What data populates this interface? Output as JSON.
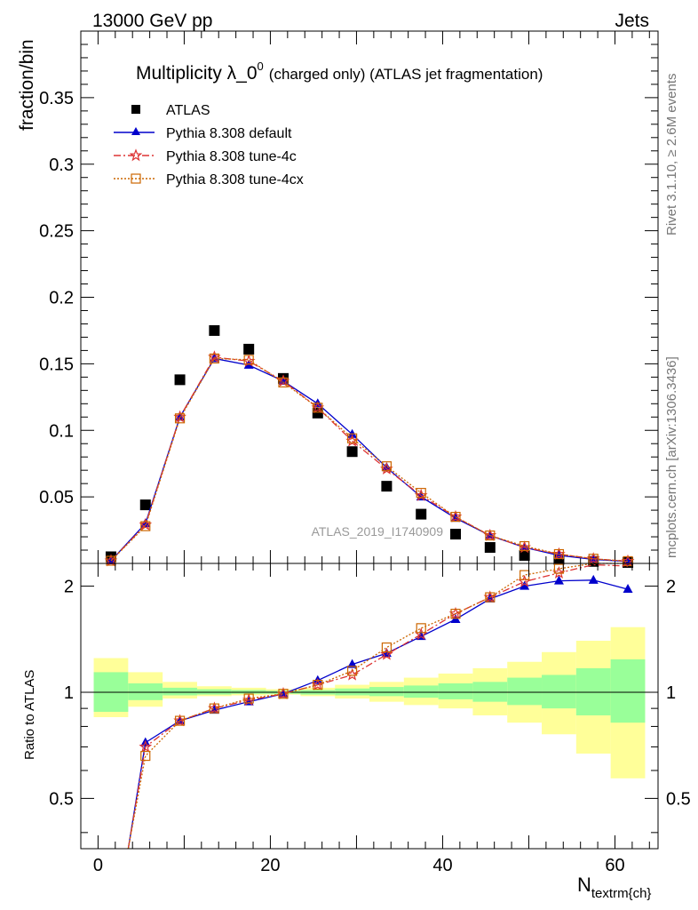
{
  "header": {
    "left": "13000 GeV pp",
    "right": "Jets"
  },
  "side": {
    "rivet": "Rivet 3.1.10, ≥ 2.6M events",
    "mcplots": "mcplots.cern.ch [arXiv:1306.3436]"
  },
  "watermark": "ATLAS_2019_I1740909",
  "title": {
    "main": "Multiplicity λ_0",
    "sup": "0",
    "paren": "(charged only) (ATLAS jet fragmentation)"
  },
  "xlabel": {
    "base": "N",
    "sub": "textrm{ch}"
  },
  "chart_data": [
    {
      "type": "scatter",
      "panel": "main",
      "ylabel": "fraction/bin",
      "xlim": [
        -2,
        65
      ],
      "ylim": [
        0,
        0.4
      ],
      "yticks": [
        0.05,
        0.1,
        0.15,
        0.2,
        0.25,
        0.3,
        0.35
      ],
      "yticklabels": [
        "0.05",
        "0.1",
        "0.15",
        "0.2",
        "0.25",
        "0.3",
        "0.35"
      ],
      "x": [
        1.5,
        5.5,
        9.5,
        13.5,
        17.5,
        21.5,
        25.5,
        29.5,
        33.5,
        37.5,
        41.5,
        45.5,
        49.5,
        53.5,
        57.5,
        61.5
      ],
      "series": [
        {
          "name": "ATLAS",
          "style": "data",
          "color": "#000000",
          "values": [
            0.005,
            0.044,
            0.138,
            0.175,
            0.161,
            0.139,
            0.113,
            0.084,
            0.058,
            0.037,
            0.022,
            0.012,
            0.006,
            0.003,
            0.0015,
            0.0007
          ]
        },
        {
          "name": "Pythia 8.308 default",
          "style": "default",
          "color": "#0000cc",
          "values": [
            0.002,
            0.03,
            0.11,
            0.154,
            0.149,
            0.137,
            0.12,
            0.097,
            0.072,
            0.05,
            0.034,
            0.021,
            0.012,
            0.006,
            0.003,
            0.0015
          ]
        },
        {
          "name": "Pythia 8.308 tune-4c",
          "style": "tune4c",
          "color": "#dd3333",
          "values": [
            0.002,
            0.029,
            0.11,
            0.155,
            0.152,
            0.137,
            0.117,
            0.092,
            0.071,
            0.051,
            0.035,
            0.021,
            0.012,
            0.007,
            0.0035,
            0.0017
          ]
        },
        {
          "name": "Pythia 8.308 tune-4cx",
          "style": "tune4cx",
          "color": "#cc6600",
          "values": [
            0.002,
            0.028,
            0.109,
            0.154,
            0.153,
            0.136,
            0.117,
            0.094,
            0.073,
            0.053,
            0.035,
            0.021,
            0.013,
            0.007,
            0.0035,
            0.0017
          ]
        }
      ]
    },
    {
      "type": "line",
      "panel": "ratio",
      "ylabel": "Ratio to ATLAS",
      "xlim": [
        -2,
        65
      ],
      "ylim": [
        0.36,
        2.32
      ],
      "yticks": [
        0.5,
        1,
        2
      ],
      "yticklabels": [
        "0.5",
        "1",
        "2"
      ],
      "xticks": [
        0,
        20,
        40,
        60
      ],
      "xticklabels": [
        "0",
        "20",
        "40",
        "60"
      ],
      "bins": [
        [
          -0.5,
          3.5
        ],
        [
          3.5,
          7.5
        ],
        [
          7.5,
          11.5
        ],
        [
          11.5,
          15.5
        ],
        [
          15.5,
          19.5
        ],
        [
          19.5,
          23.5
        ],
        [
          23.5,
          27.5
        ],
        [
          27.5,
          31.5
        ],
        [
          31.5,
          35.5
        ],
        [
          35.5,
          39.5
        ],
        [
          39.5,
          43.5
        ],
        [
          43.5,
          47.5
        ],
        [
          47.5,
          51.5
        ],
        [
          51.5,
          55.5
        ],
        [
          55.5,
          59.5
        ],
        [
          59.5,
          63.5
        ]
      ],
      "band_inner": [
        [
          0.88,
          1.14
        ],
        [
          0.95,
          1.06
        ],
        [
          0.98,
          1.03
        ],
        [
          0.985,
          1.02
        ],
        [
          0.99,
          1.015
        ],
        [
          0.99,
          1.01
        ],
        [
          0.985,
          1.015
        ],
        [
          0.98,
          1.025
        ],
        [
          0.975,
          1.035
        ],
        [
          0.965,
          1.045
        ],
        [
          0.955,
          1.06
        ],
        [
          0.94,
          1.07
        ],
        [
          0.92,
          1.1
        ],
        [
          0.9,
          1.12
        ],
        [
          0.86,
          1.17
        ],
        [
          0.82,
          1.24
        ]
      ],
      "band_outer": [
        [
          0.85,
          1.25
        ],
        [
          0.91,
          1.14
        ],
        [
          0.96,
          1.07
        ],
        [
          0.975,
          1.04
        ],
        [
          0.98,
          1.03
        ],
        [
          0.985,
          1.02
        ],
        [
          0.975,
          1.03
        ],
        [
          0.96,
          1.05
        ],
        [
          0.94,
          1.07
        ],
        [
          0.92,
          1.1
        ],
        [
          0.9,
          1.13
        ],
        [
          0.86,
          1.17
        ],
        [
          0.82,
          1.22
        ],
        [
          0.76,
          1.3
        ],
        [
          0.67,
          1.4
        ],
        [
          0.57,
          1.53
        ]
      ],
      "x": [
        3.5,
        5.5,
        9.5,
        13.5,
        17.5,
        21.5,
        25.5,
        29.5,
        33.5,
        37.5,
        41.5,
        45.5,
        49.5,
        53.5,
        57.5,
        61.5
      ],
      "series": [
        {
          "name": "Pythia 8.308 default",
          "style": "default",
          "color": "#0000cc",
          "values": [
            0.36,
            0.72,
            0.83,
            0.89,
            0.94,
            0.99,
            1.08,
            1.2,
            1.29,
            1.44,
            1.61,
            1.84,
            2.0,
            2.07,
            2.08,
            1.96
          ]
        },
        {
          "name": "Pythia 8.308 tune-4c",
          "style": "tune4c",
          "color": "#dd3333",
          "values": [
            0.36,
            0.7,
            0.83,
            0.9,
            0.95,
            0.99,
            1.05,
            1.12,
            1.28,
            1.46,
            1.67,
            1.86,
            2.06,
            2.18,
            2.3,
            2.28
          ]
        },
        {
          "name": "Pythia 8.308 tune-4cx",
          "style": "tune4cx",
          "color": "#cc6600",
          "values": [
            0.36,
            0.66,
            0.83,
            0.9,
            0.96,
            0.99,
            1.05,
            1.15,
            1.34,
            1.52,
            1.67,
            1.86,
            2.15,
            2.24,
            2.32,
            2.32
          ]
        }
      ]
    }
  ]
}
